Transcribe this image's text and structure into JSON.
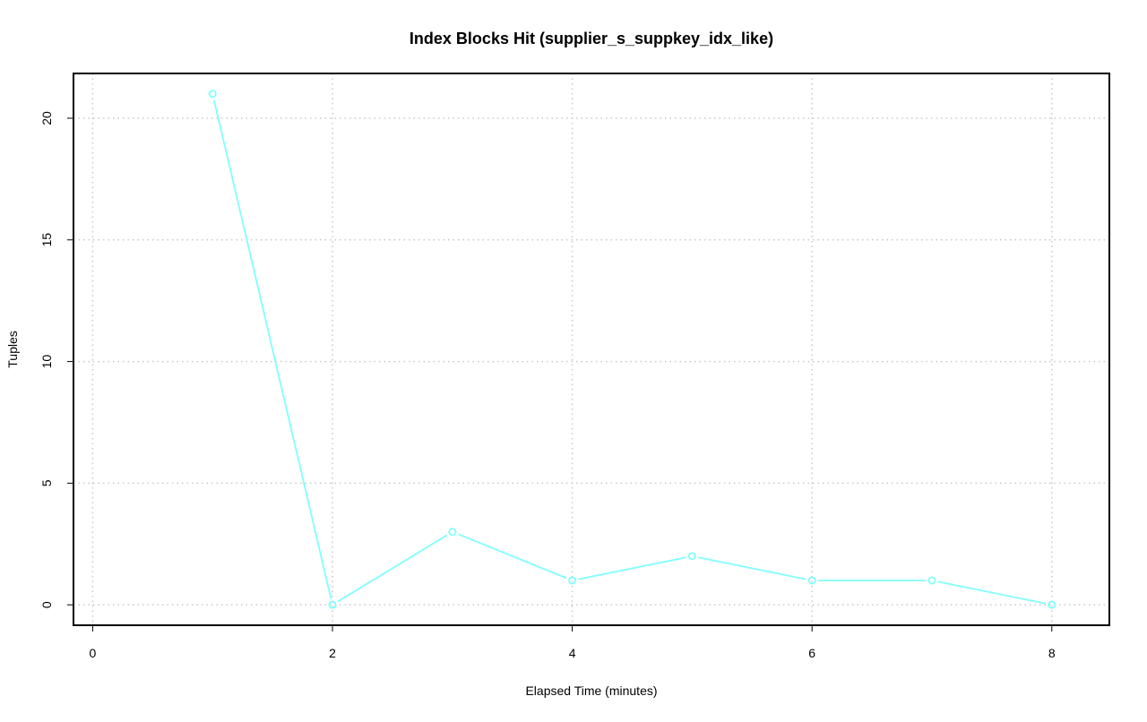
{
  "chart_data": {
    "type": "line",
    "title": "Index Blocks Hit (supplier_s_suppkey_idx_like)",
    "xlabel": "Elapsed Time (minutes)",
    "ylabel": "Tuples",
    "x": [
      1,
      2,
      3,
      4,
      5,
      6,
      7,
      8
    ],
    "series": [
      {
        "values": [
          21,
          0,
          3,
          1,
          2,
          1,
          1,
          0
        ],
        "color": "#80ffff"
      }
    ],
    "xlim": [
      -0.16,
      8.48
    ],
    "ylim": [
      -0.84,
      21.84
    ],
    "xticks": [
      0,
      2,
      4,
      6,
      8
    ],
    "yticks": [
      0,
      5,
      10,
      15,
      20
    ],
    "xtick_labels": [
      "0",
      "2",
      "4",
      "6",
      "8"
    ],
    "ytick_labels": [
      "0",
      "5",
      "10",
      "15",
      "20"
    ],
    "grid": true,
    "grid_color": "#c8c8c8",
    "marker": "open-circle",
    "legend": "none"
  }
}
